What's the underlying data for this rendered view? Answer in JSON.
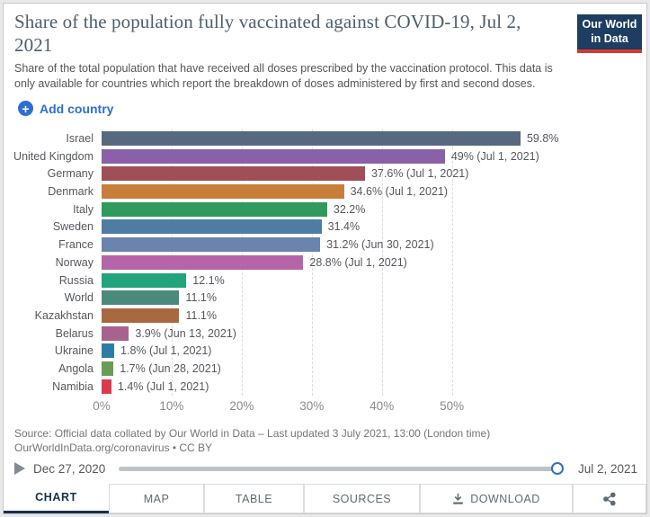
{
  "header": {
    "subtitle": "Share of the total population that have received all doses prescribed by the vaccination protocol. This data is only available for countries which report the breakdown of doses administered by first and second doses.",
    "logo": {
      "line1": "Our World",
      "line2": "in Data"
    }
  },
  "controls": {
    "add_country_label": "Add country",
    "plus_glyph": "+"
  },
  "chart_data": {
    "type": "bar",
    "orientation": "horizontal",
    "title": "Share of the population fully vaccinated against COVID-19, Jul 2, 2021",
    "unit": "%",
    "categories": [
      "Israel",
      "United Kingdom",
      "Germany",
      "Denmark",
      "Italy",
      "Sweden",
      "France",
      "Norway",
      "Russia",
      "World",
      "Kazakhstan",
      "Belarus",
      "Ukraine",
      "Angola",
      "Namibia"
    ],
    "values": [
      59.8,
      49,
      37.6,
      34.6,
      32.2,
      31.4,
      31.2,
      28.8,
      12.1,
      11.1,
      11.1,
      3.9,
      1.8,
      1.7,
      1.4
    ],
    "value_labels": [
      "59.8%",
      "49% (Jul 1, 2021)",
      "37.6% (Jul 1, 2021)",
      "34.6% (Jul 1, 2021)",
      "32.2%",
      "31.4%",
      "31.2% (Jun 30, 2021)",
      "28.8% (Jul 1, 2021)",
      "12.1%",
      "11.1%",
      "11.1%",
      "3.9% (Jun 13, 2021)",
      "1.8% (Jul 1, 2021)",
      "1.7% (Jun 28, 2021)",
      "1.4% (Jul 1, 2021)"
    ],
    "bar_colors": [
      "#56697f",
      "#8a60a9",
      "#a04e58",
      "#c87e3b",
      "#2e9a5c",
      "#4f7ca2",
      "#6b84ae",
      "#b565a7",
      "#21a37c",
      "#4a8a7b",
      "#a96840",
      "#a7638d",
      "#2d7ca8",
      "#699d55",
      "#dc3a50"
    ],
    "axis": {
      "tick_values": [
        0,
        10,
        20,
        30,
        40,
        50
      ],
      "tick_labels": [
        "0%",
        "10%",
        "20%",
        "30%",
        "40%",
        "50%"
      ],
      "max": 77,
      "grid": "dashed"
    },
    "xlabel": "",
    "ylabel": ""
  },
  "source": {
    "line1": "Source: Official data collated by Our World in Data – Last updated 3 July 2021, 13:00 (London time)",
    "line2": "OurWorldInData.org/coronavirus • CC BY"
  },
  "timeline": {
    "start_date": "Dec 27, 2020",
    "end_date": "Jul 2, 2021"
  },
  "tabs": {
    "chart": "CHART",
    "map": "MAP",
    "table": "TABLE",
    "sources": "SOURCES",
    "download": "DOWNLOAD"
  },
  "colors": {
    "accent_blue": "#2d6fd1",
    "tab_navy": "#16324e",
    "logo_bg": "#1d3d63",
    "logo_red": "#d6382c"
  }
}
